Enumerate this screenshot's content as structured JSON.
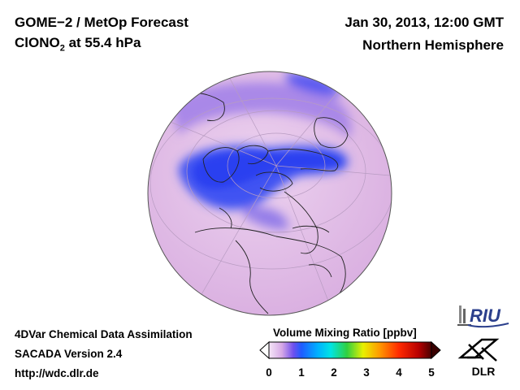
{
  "header": {
    "title_line1": "GOME−2 / MetOp Forecast",
    "species_prefix": "ClONO",
    "species_subscript": "2",
    "species_suffix": " at 55.4 hPa",
    "datetime": "Jan 30, 2013, 12:00 GMT",
    "region": "Northern Hemisphere"
  },
  "footer": {
    "line1": "4DVar Chemical Data Assimilation",
    "line2": "SACADA Version 2.4",
    "line3": "http://wdc.dlr.de"
  },
  "colorbar": {
    "title": "Volume Mixing Ratio [ppbv]",
    "ticks": [
      "0",
      "1",
      "2",
      "3",
      "4",
      "5"
    ],
    "range": [
      0,
      5
    ],
    "colors": [
      "#ffffff",
      "#e8c8ee",
      "#b070e0",
      "#4040ff",
      "#00a0ff",
      "#00e0e0",
      "#30d040",
      "#f0f000",
      "#ff9000",
      "#ff2000",
      "#c00000",
      "#500000"
    ]
  },
  "logos": {
    "riu": "RIU",
    "dlr": "DLR"
  },
  "map": {
    "projection": "orthographic",
    "hemisphere": "Northern",
    "background_color": "#e6c6ea",
    "low_value_color": "#3a4df0"
  }
}
